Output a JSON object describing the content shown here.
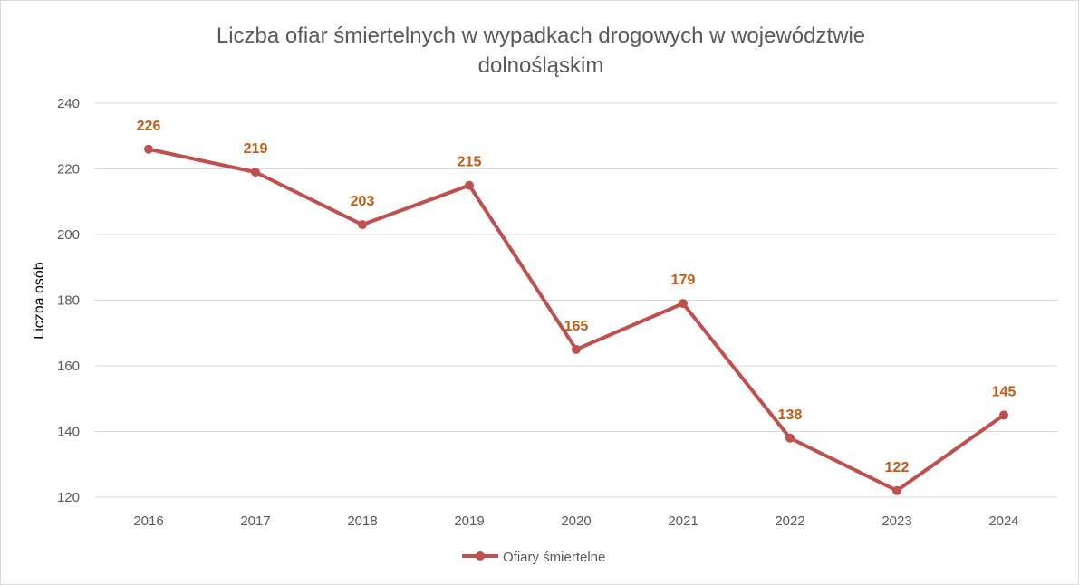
{
  "chart_data": {
    "type": "line",
    "title": "Liczba ofiar śmiertelnych w wypadkach drogowych w województwie dolnośląskim",
    "title_lines": [
      "Liczba ofiar śmiertelnych w wypadkach drogowych w województwie",
      "dolnośląskim"
    ],
    "xlabel": "",
    "ylabel": "Liczba osób",
    "categories": [
      "2016",
      "2017",
      "2018",
      "2019",
      "2020",
      "2021",
      "2022",
      "2023",
      "2024"
    ],
    "series": [
      {
        "name": "Ofiary śmiertelne",
        "values": [
          226,
          219,
          203,
          215,
          165,
          179,
          138,
          122,
          145
        ],
        "color": "#C0504D"
      }
    ],
    "ylim": [
      120,
      240
    ],
    "yticks": [
      120,
      140,
      160,
      180,
      200,
      220,
      240
    ],
    "grid": true,
    "data_labels": true,
    "data_label_color": "#C55A11",
    "legend_position": "bottom"
  }
}
